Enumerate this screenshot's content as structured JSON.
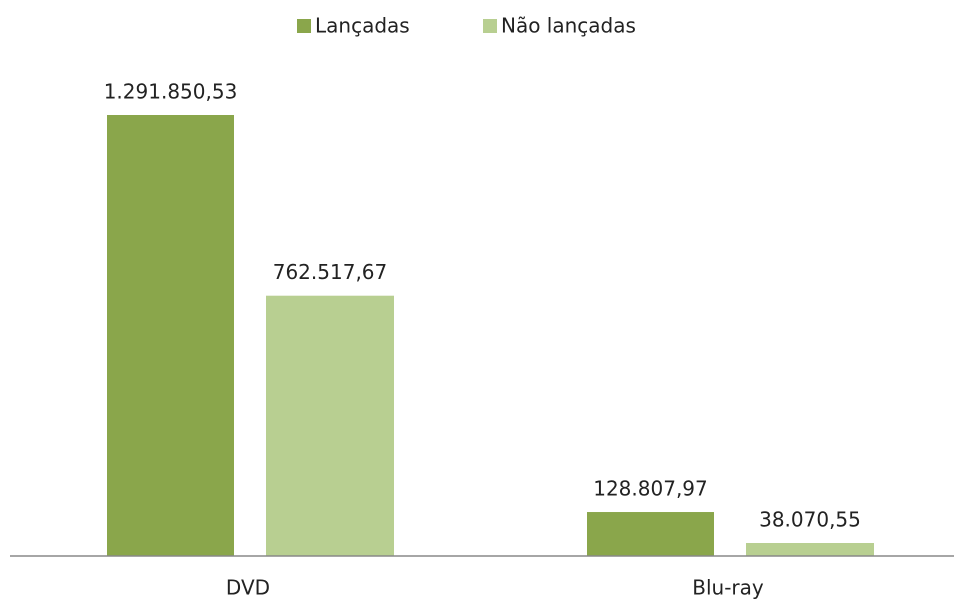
{
  "chart_data": {
    "type": "bar",
    "categories": [
      "DVD",
      "Blu-ray"
    ],
    "series": [
      {
        "name": "Lançadas",
        "color": "#8aa64b",
        "values": [
          1291850.53,
          128807.97
        ],
        "value_labels": [
          "1.291.850,53",
          "128.807,97"
        ]
      },
      {
        "name": "Não lançadas",
        "color": "#b8cf91",
        "values": [
          762517.67,
          38070.55
        ],
        "value_labels": [
          "762.517,67",
          "38.070,55"
        ]
      }
    ],
    "legend": "top"
  }
}
